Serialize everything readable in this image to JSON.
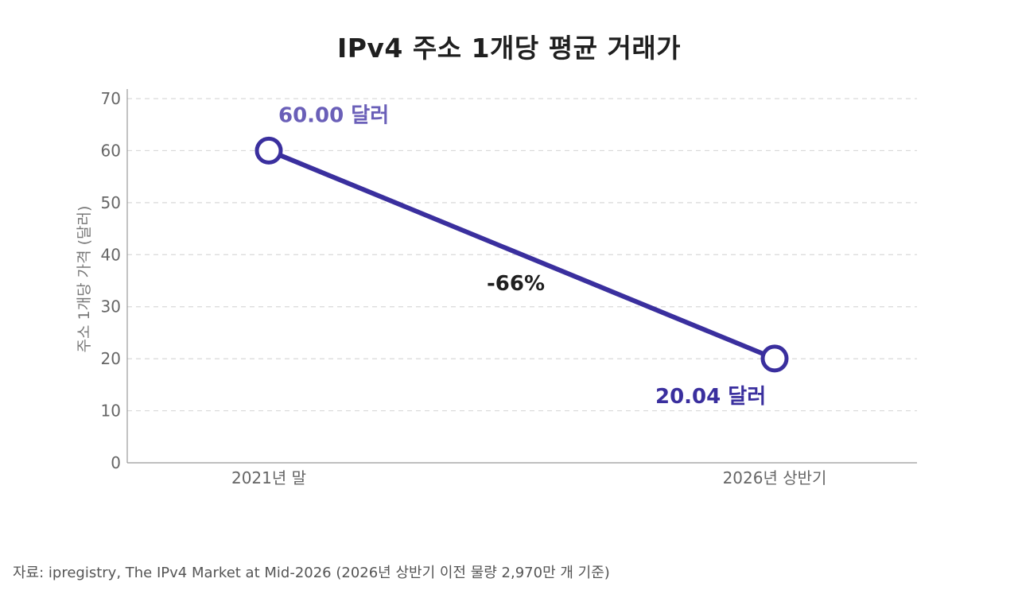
{
  "chart_data": {
    "type": "line",
    "title": "IPv4 주소 1개당 평균 거래가",
    "ylabel": "주소 1개당 가격 (달러)",
    "xlabel": "",
    "categories": [
      "2021년 말",
      "2026년 상반기"
    ],
    "series": [
      {
        "values": [
          60.0,
          20.04
        ],
        "point_labels": [
          "60.00 달러",
          "20.04 달러"
        ]
      }
    ],
    "yticks": [
      0,
      10,
      20,
      30,
      40,
      50,
      60,
      70
    ],
    "ylim": [
      0,
      70
    ],
    "grid": true,
    "annotations": [
      {
        "text": "-66%"
      }
    ],
    "colors": {
      "line": "#3a2f9e",
      "label_first": "#6a5fb8",
      "label_last": "#3a2f9e",
      "grid": "#d9d9d9",
      "axis": "#999999",
      "tick_text": "#666666"
    }
  },
  "source": "자료: ipregistry, The IPv4 Market at Mid-2026 (2026년 상반기 이전 물량 2,970만 개 기준)"
}
